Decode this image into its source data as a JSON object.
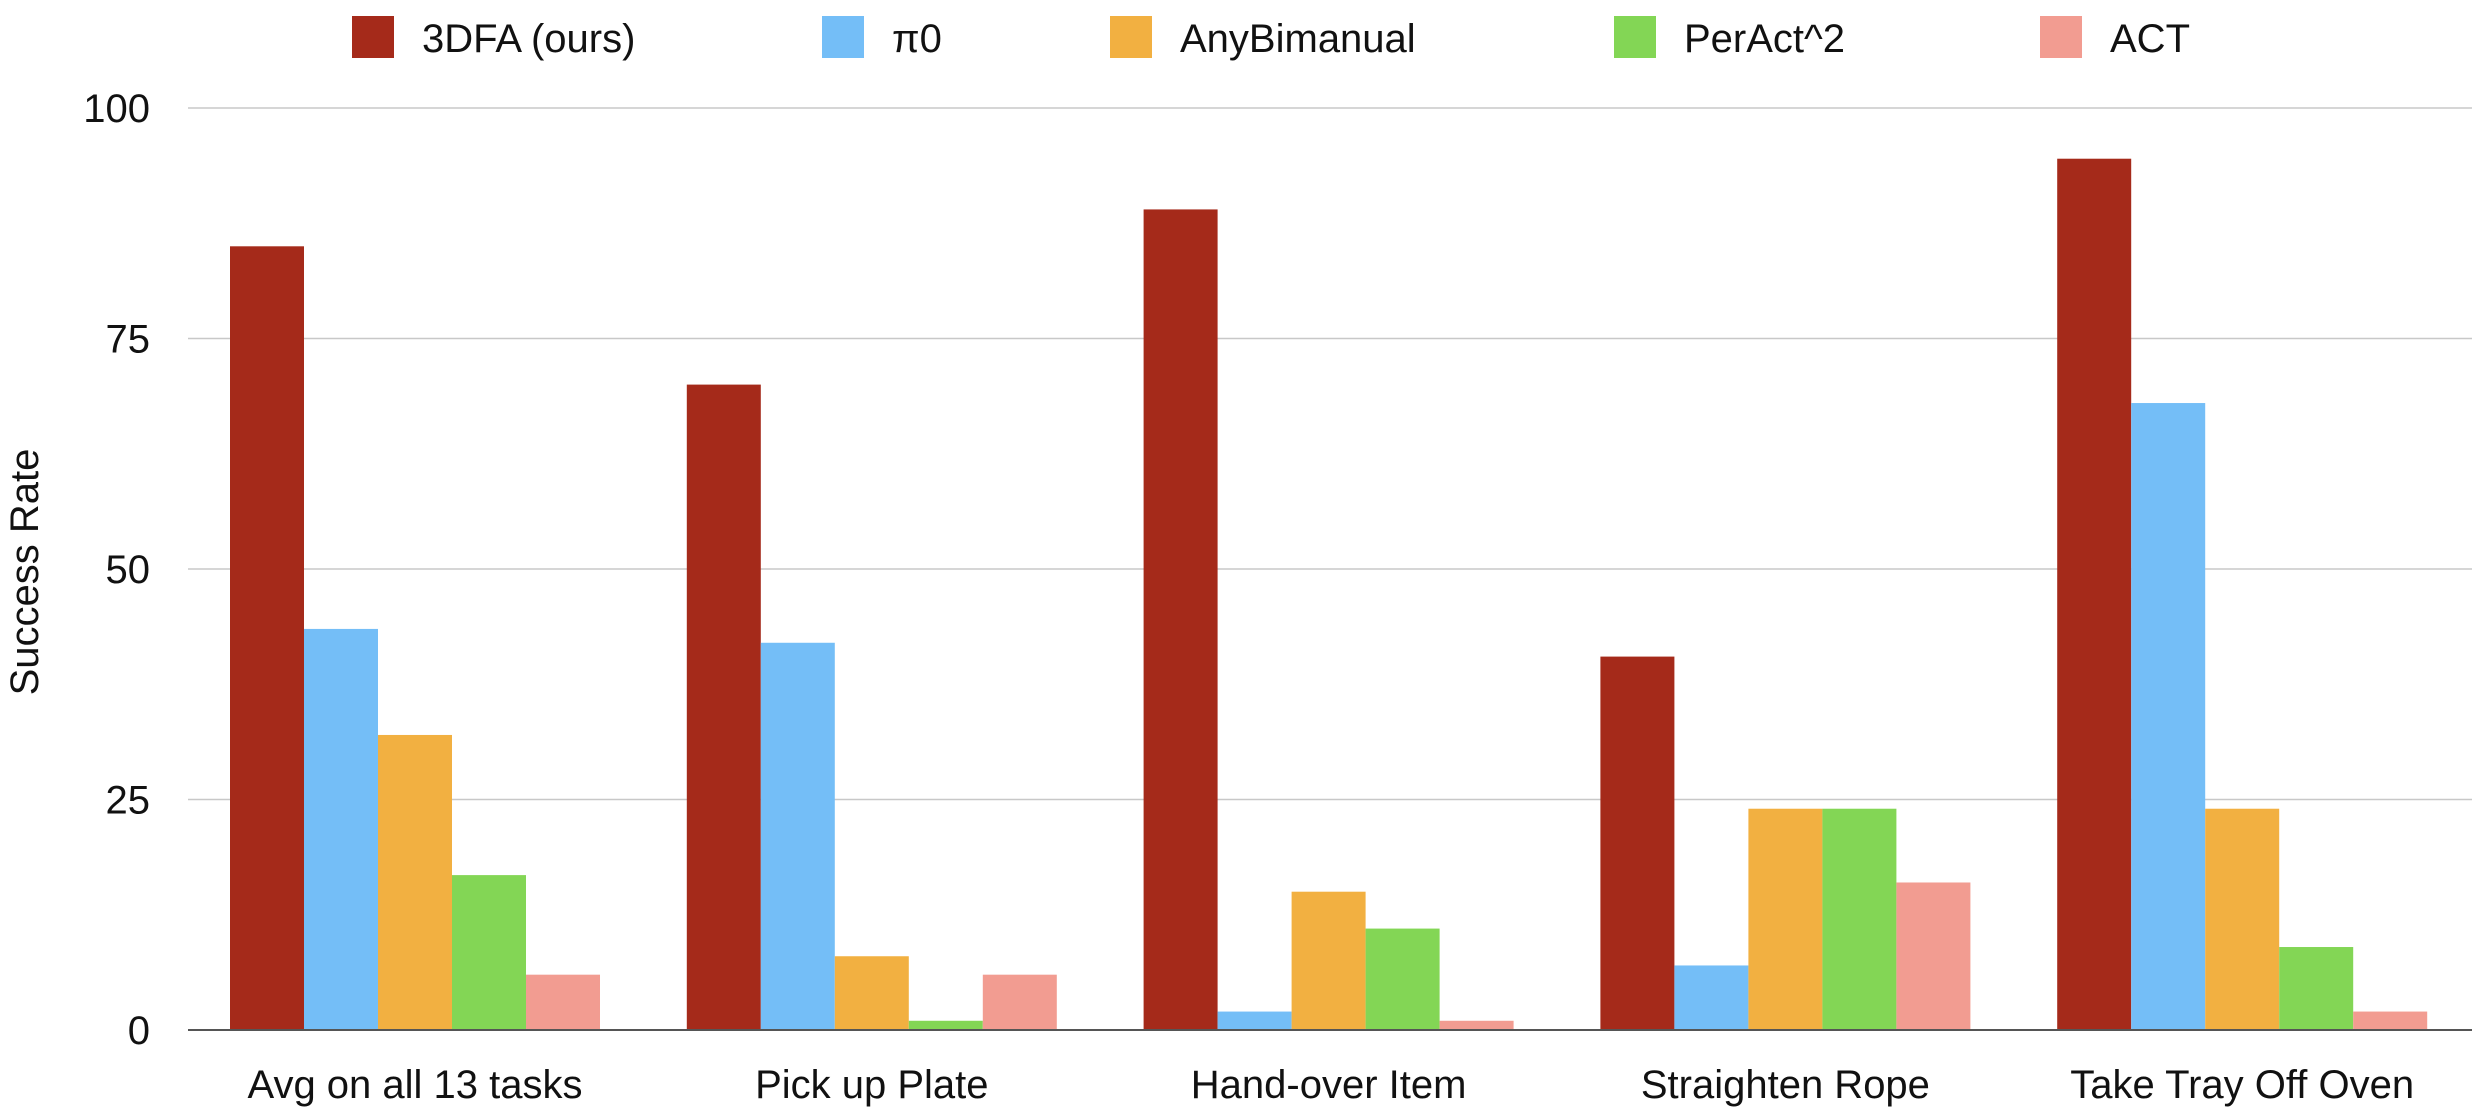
{
  "chart_data": {
    "type": "bar",
    "title": "",
    "xlabel": "",
    "ylabel": "Success Rate",
    "ylim": [
      0,
      100
    ],
    "yticks": [
      0,
      25,
      50,
      75,
      100
    ],
    "grid": true,
    "legend_position": "top",
    "categories": [
      "Avg on all 13 tasks",
      "Pick up Plate",
      "Hand-over Item",
      "Straighten Rope",
      "Take Tray Off Oven"
    ],
    "series": [
      {
        "name": "3DFA (ours)",
        "color": "#A52A1A",
        "values": [
          85,
          70,
          89,
          40.5,
          94.5
        ]
      },
      {
        "name": "π0",
        "color": "#74BEF7",
        "values": [
          43.5,
          42,
          2,
          7,
          68
        ]
      },
      {
        "name": "AnyBimanual",
        "color": "#F2B041",
        "values": [
          32,
          8,
          15,
          24,
          24
        ]
      },
      {
        "name": "PerAct^2",
        "color": "#83D655",
        "values": [
          16.8,
          1,
          11,
          24,
          9
        ]
      },
      {
        "name": "ACT",
        "color": "#F29C91",
        "values": [
          6,
          6,
          1,
          16,
          2
        ]
      }
    ]
  }
}
